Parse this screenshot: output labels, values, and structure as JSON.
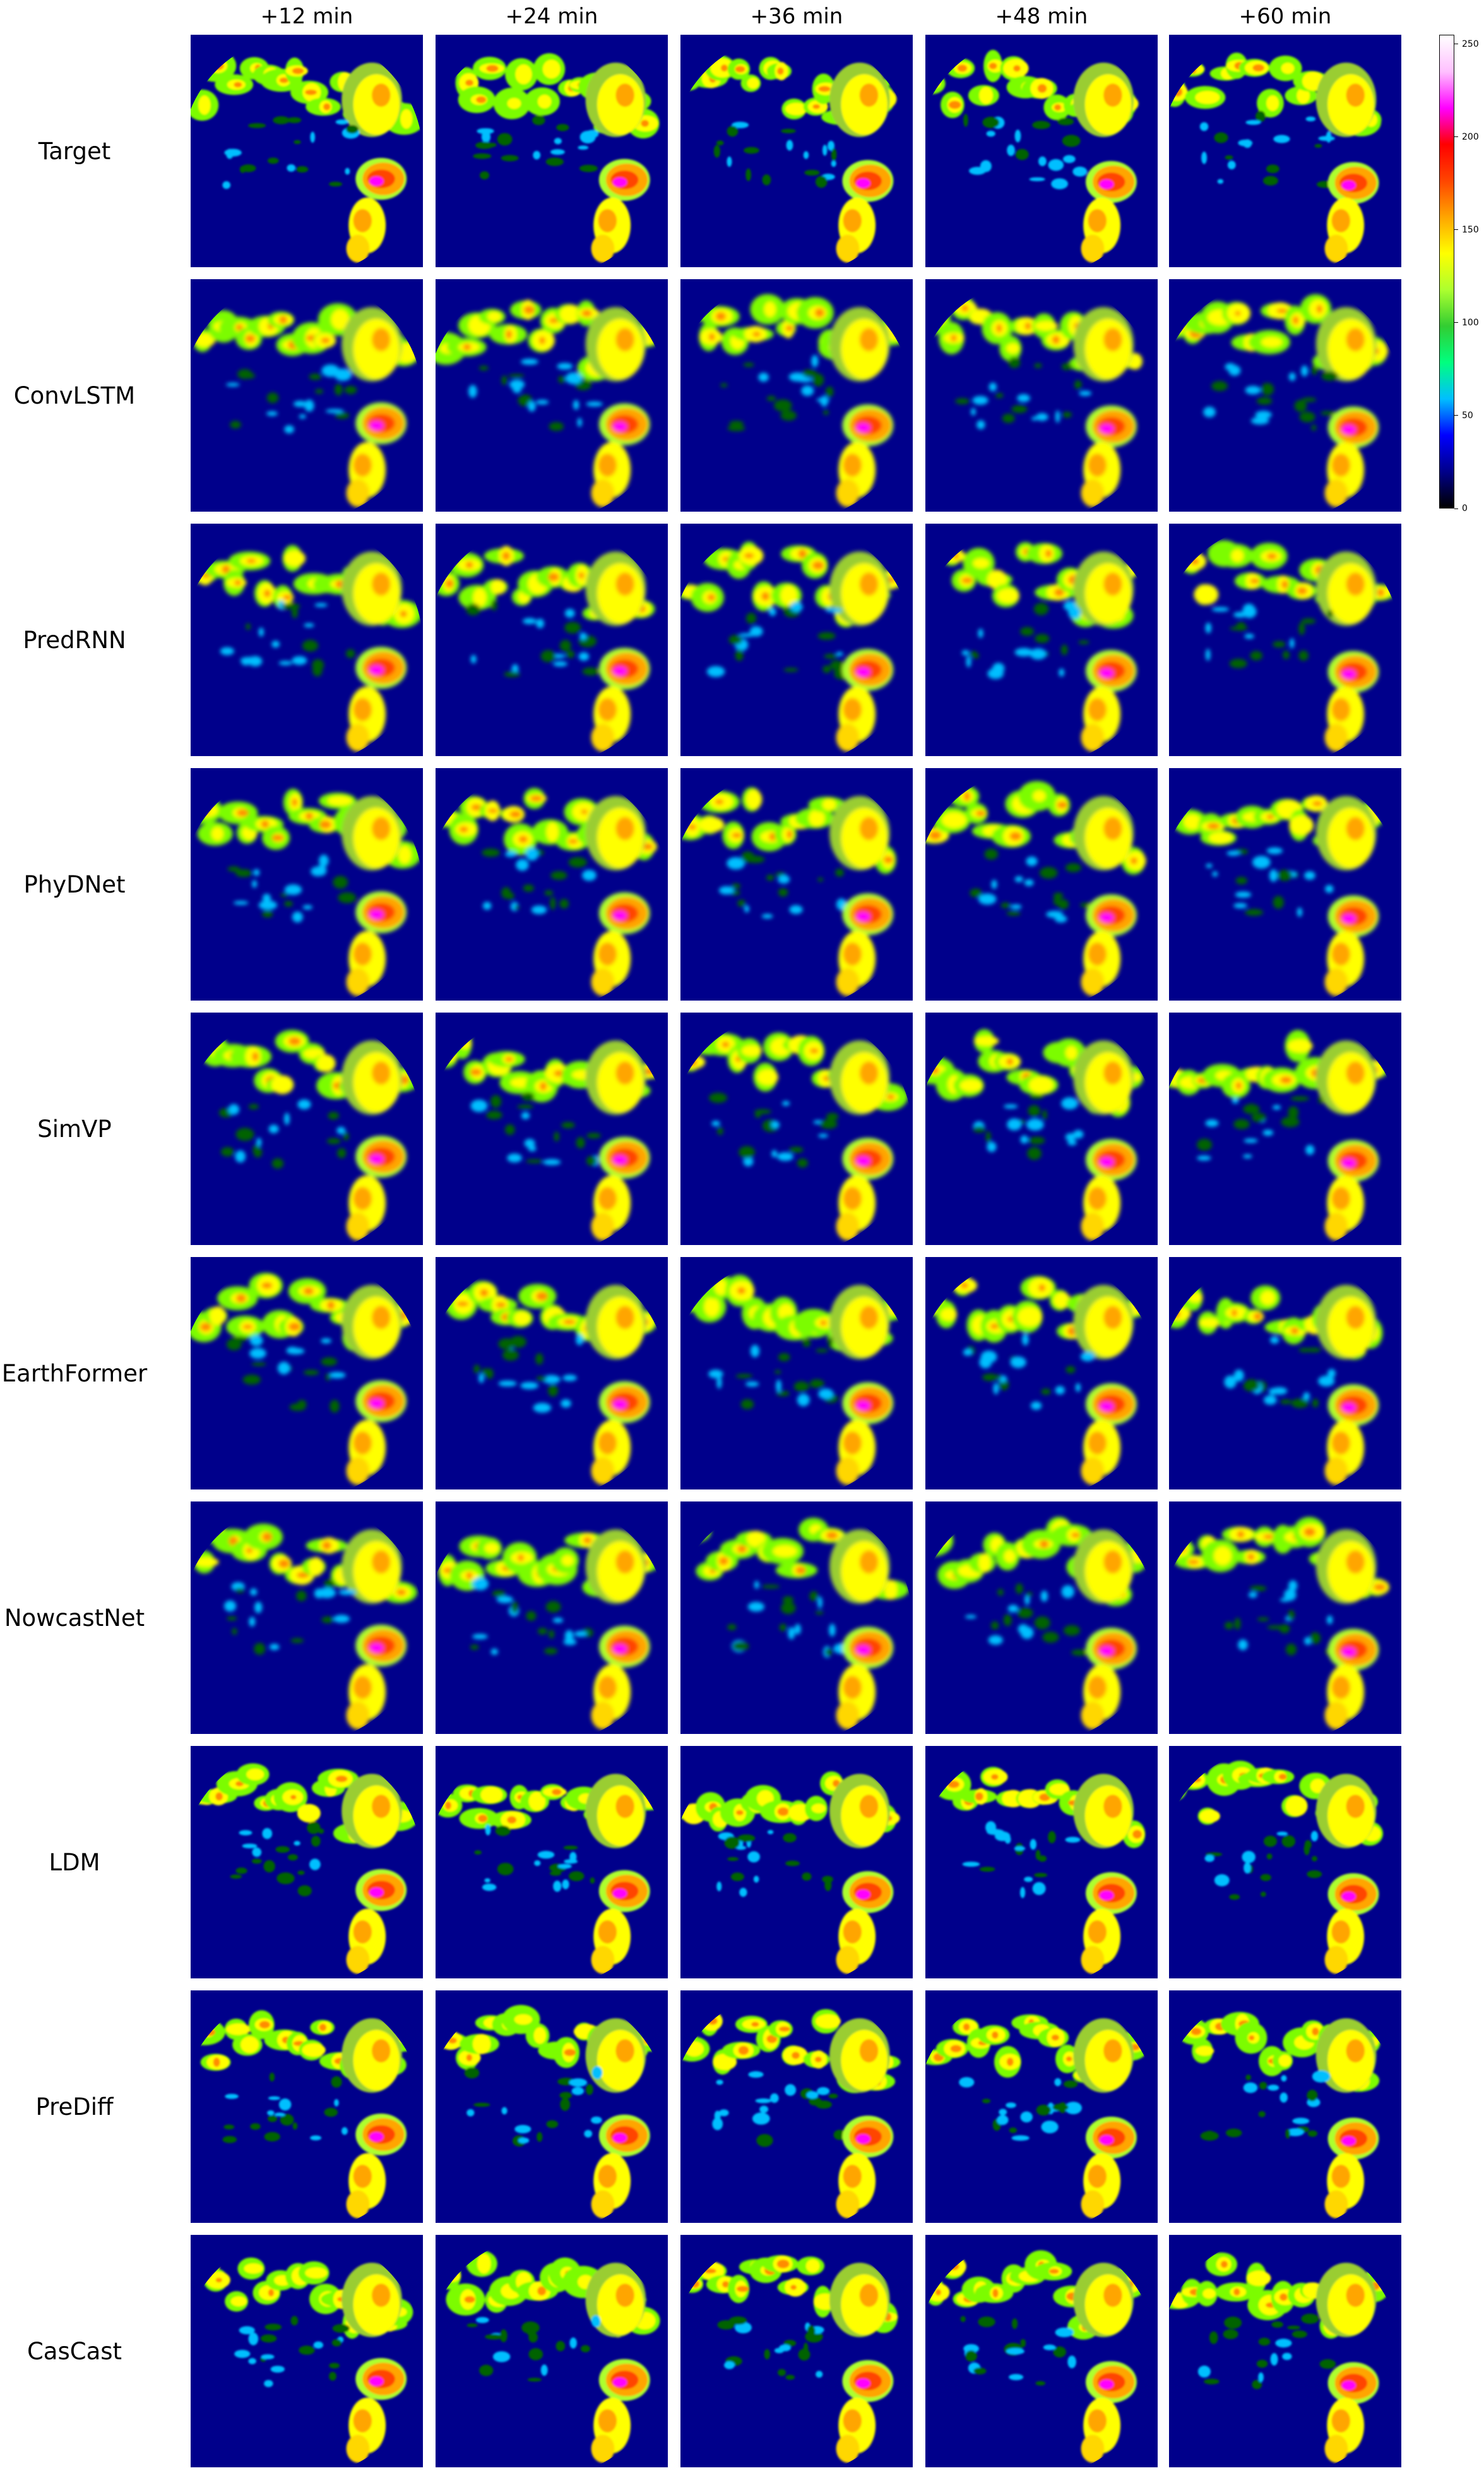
{
  "columns": [
    "+12 min",
    "+24 min",
    "+36 min",
    "+48 min",
    "+60 min"
  ],
  "rows": [
    "Target",
    "ConvLSTM",
    "PredRNN",
    "PhyDNet",
    "SimVP",
    "EarthFormer",
    "NowcastNet",
    "LDM",
    "PreDiff",
    "CasCast"
  ],
  "colorbar": {
    "ticks": [
      "250",
      "200",
      "150",
      "100",
      "50",
      "0"
    ],
    "tick_values": [
      250,
      200,
      150,
      100,
      50,
      0
    ],
    "range": [
      0,
      255
    ],
    "colors": [
      "#000000",
      "#00008b",
      "#0000ff",
      "#00bfff",
      "#00ff7f",
      "#32cd32",
      "#adff2f",
      "#ffff00",
      "#ffa500",
      "#ff4500",
      "#ff0000",
      "#ff00ff",
      "#ffc0ff",
      "#ffffff"
    ]
  },
  "panel_background": "#00008b"
}
